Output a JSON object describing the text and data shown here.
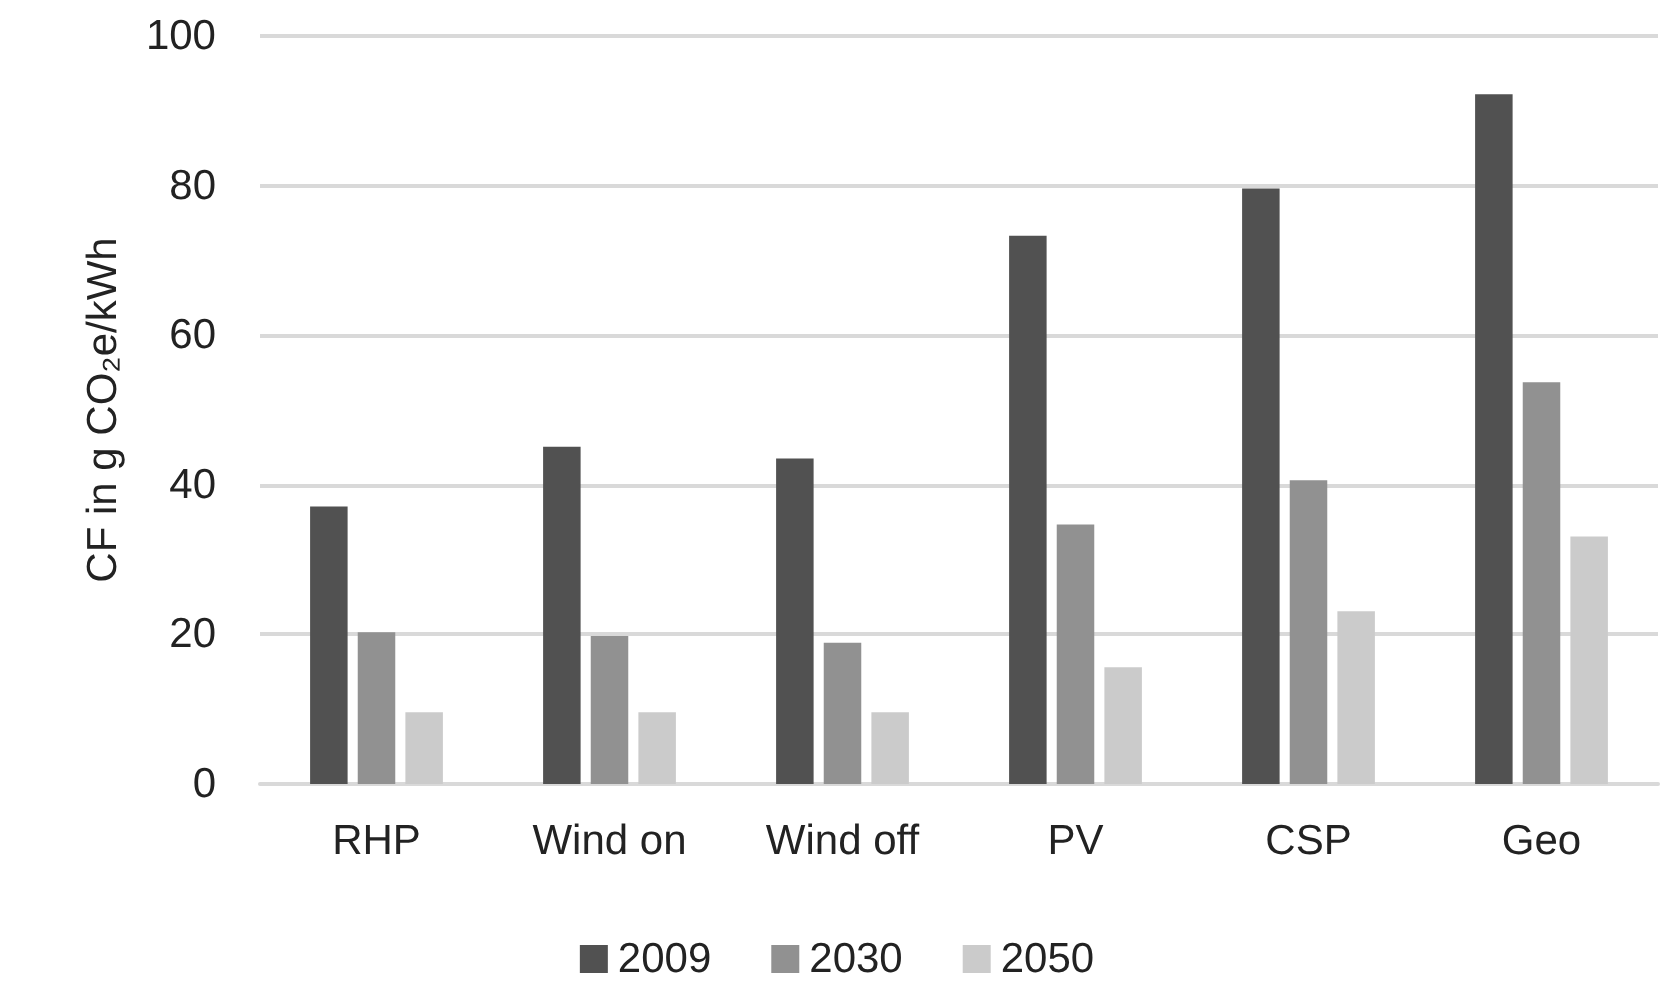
{
  "chart_data": {
    "type": "bar",
    "ylabel": "CF in g CO₂e/kWh",
    "categories": [
      "RHP",
      "Wind on",
      "Wind off",
      "PV",
      "CSP",
      "Geo"
    ],
    "series": [
      {
        "name": "2009",
        "color": "#515151",
        "values": [
          37.1,
          45.1,
          43.5,
          73.3,
          79.6,
          92.2
        ]
      },
      {
        "name": "2030",
        "color": "#919191",
        "values": [
          20.3,
          19.8,
          18.9,
          34.7,
          40.6,
          53.7
        ]
      },
      {
        "name": "2050",
        "color": "#cbcbcb",
        "values": [
          9.6,
          9.6,
          9.6,
          15.6,
          23.1,
          33.1
        ]
      }
    ],
    "ylim": [
      0,
      100
    ],
    "yticks": [
      0,
      20,
      40,
      60,
      80,
      100
    ],
    "grid": "y",
    "legend": "bottom"
  }
}
